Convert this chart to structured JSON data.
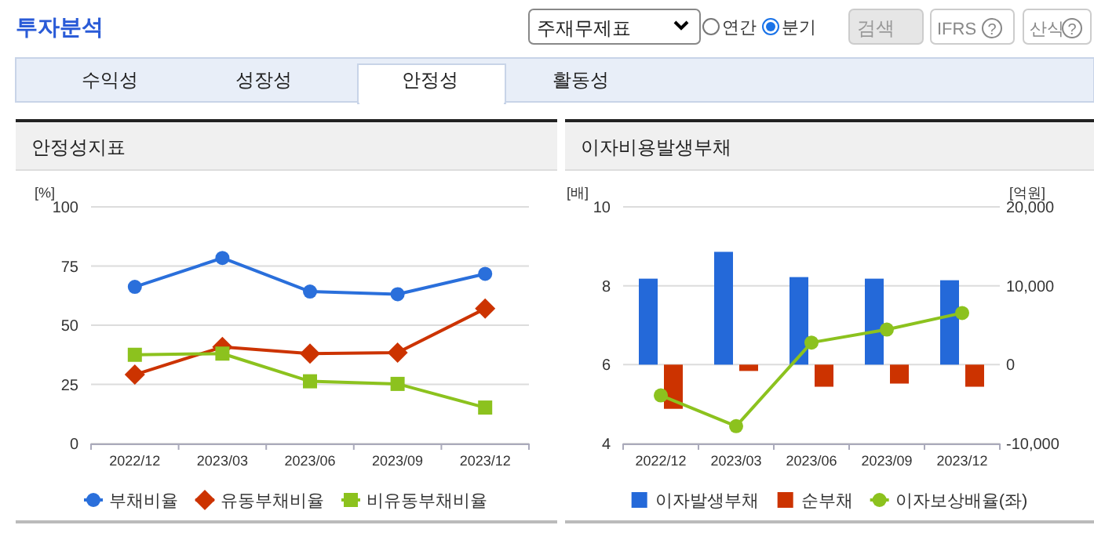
{
  "chart_data": [
    {
      "type": "other",
      "annotations": [
        "투자분석",
        "주재무제표",
        "연간",
        "분기",
        "검색",
        "IFRS",
        "?",
        "산식",
        "?",
        "수익성",
        "성장성",
        "안정성",
        "활동성"
      ]
    },
    {
      "type": "line",
      "title": "안정성지표",
      "ylabel": "[%]",
      "categories": [
        "2022/12",
        "2023/03",
        "2023/06",
        "2023/09",
        "2023/12"
      ],
      "ylim": [
        0,
        100
      ],
      "yticks": [
        0,
        25,
        50,
        75,
        100
      ],
      "grid": "y",
      "legend": "bottom",
      "series": [
        {
          "name": "부채비율",
          "color": "#2a6fdb",
          "marker": "circle",
          "values": [
            66.2,
            78.4,
            64.2,
            63.1,
            71.7
          ]
        },
        {
          "name": "유동부채비율",
          "color": "#cc3300",
          "marker": "diamond",
          "values": [
            29.1,
            40.8,
            38.0,
            38.4,
            57.0
          ]
        },
        {
          "name": "비유동부채비율",
          "color": "#8cc21e",
          "marker": "square",
          "values": [
            37.5,
            38.0,
            26.3,
            25.2,
            15.2
          ]
        }
      ]
    },
    {
      "type": "bar",
      "title": "이자비용발생부채",
      "ylabel": "[배]",
      "y2label": "[억원]",
      "categories": [
        "2022/12",
        "2023/03",
        "2023/06",
        "2023/09",
        "2023/12"
      ],
      "ylim": [
        4,
        10
      ],
      "yticks": [
        4,
        6,
        8,
        10
      ],
      "y2lim": [
        -10000,
        20000
      ],
      "y2ticks": [
        {
          "value": -10000,
          "label": "-10,000"
        },
        0,
        {
          "value": 10000,
          "label": "10,000"
        },
        {
          "value": 20000,
          "label": "20,000"
        }
      ],
      "grid": "y",
      "legend": "bottom",
      "series": [
        {
          "name": "이자발생부채",
          "color": "#2469d9",
          "axis": "y2",
          "values": [
            10900,
            14300,
            11100,
            10900,
            10700
          ]
        },
        {
          "name": "순부채",
          "color": "#cc3300",
          "axis": "y2",
          "values": [
            -5600,
            -800,
            -2800,
            -2400,
            -2800
          ]
        },
        {
          "name": "이자보상배율(좌)",
          "color": "#8cc21e",
          "type": "line",
          "axis": "y",
          "marker": "circle",
          "values": [
            5.22,
            4.44,
            6.56,
            6.89,
            7.31
          ]
        }
      ]
    }
  ]
}
